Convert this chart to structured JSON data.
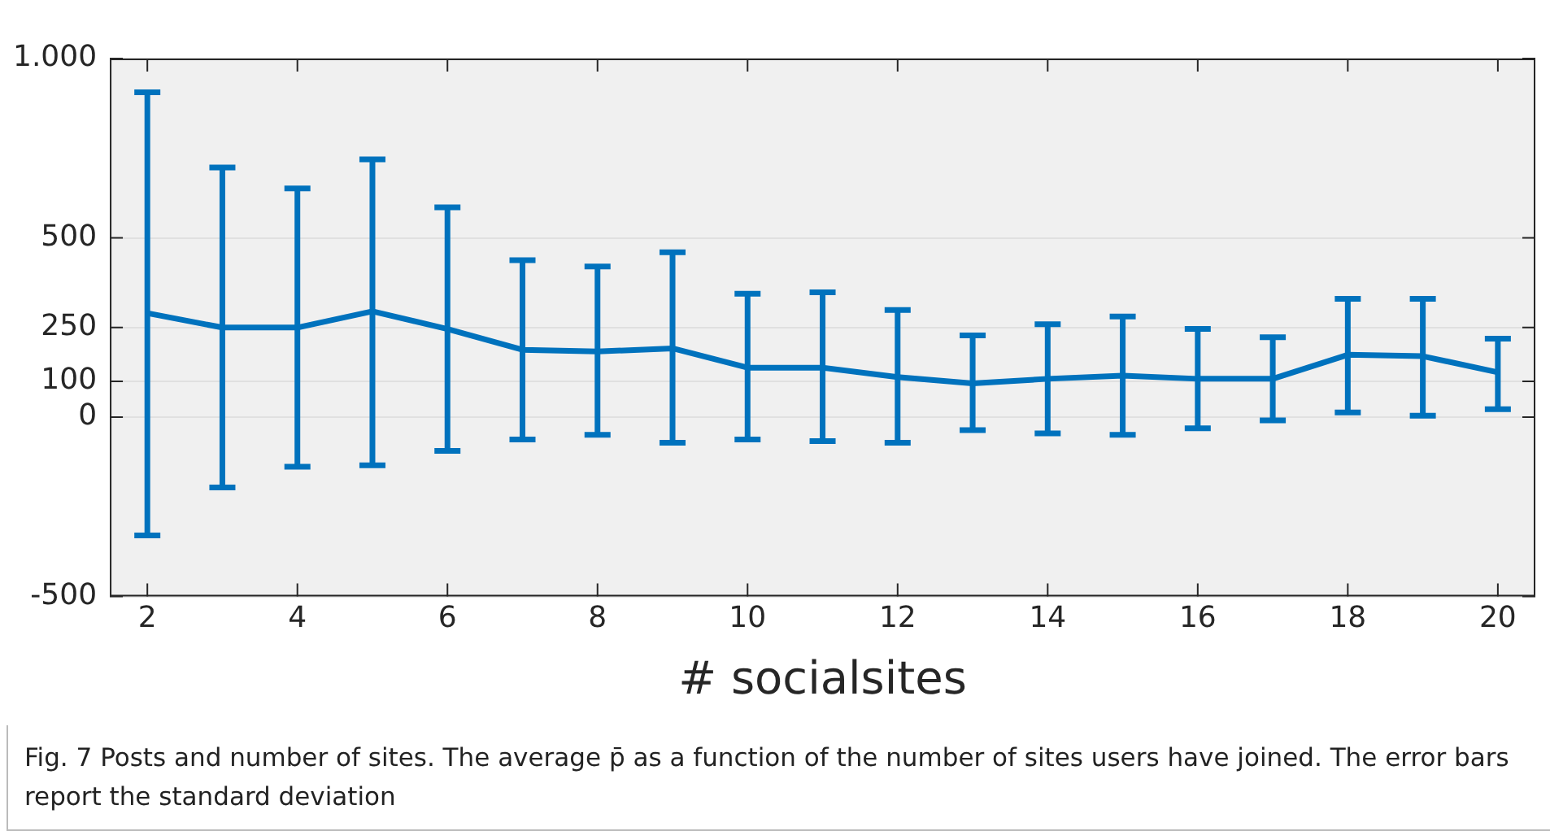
{
  "chart_data": {
    "type": "line",
    "xlabel": "# socialsites",
    "annotations": [
      "Fig. 7 Posts and number of sites. The average p̄ as a function of the number of sites users have joined. The error bars report the standard deviation"
    ],
    "x": [
      2,
      3,
      4,
      5,
      6,
      7,
      8,
      9,
      10,
      11,
      12,
      13,
      14,
      15,
      16,
      17,
      18,
      19,
      20
    ],
    "series": [
      {
        "color": "#0072bd",
        "values": [
          290,
          250,
          250,
          295,
          246,
          188,
          183,
          192,
          138,
          138,
          112,
          94,
          107,
          116,
          107,
          107,
          174,
          170,
          125
        ],
        "errors": [
          [
            -330,
            906
          ],
          [
            -196,
            696
          ],
          [
            -138,
            638
          ],
          [
            -134,
            719
          ],
          [
            -94,
            585
          ],
          [
            -62,
            438
          ],
          [
            -49,
            420
          ],
          [
            -71,
            460
          ],
          [
            -62,
            344
          ],
          [
            -67,
            348
          ],
          [
            -71,
            299
          ],
          [
            -36,
            228
          ],
          [
            -45,
            259
          ],
          [
            -49,
            281
          ],
          [
            -31,
            246
          ],
          [
            -9,
            223
          ],
          [
            13,
            330
          ],
          [
            4,
            330
          ],
          [
            22,
            219
          ]
        ]
      }
    ],
    "xlim": [
      1.5,
      20.5
    ],
    "xticks": [
      2,
      4,
      6,
      8,
      10,
      12,
      14,
      16,
      18,
      20
    ],
    "ylim": [
      -500,
      1000
    ],
    "yticks": [
      -500,
      0,
      100,
      250,
      500,
      {
        "value": 1000,
        "label": "1.000"
      }
    ],
    "grid": "y",
    "legend": false,
    "marker": "none",
    "line_style": "solid"
  }
}
